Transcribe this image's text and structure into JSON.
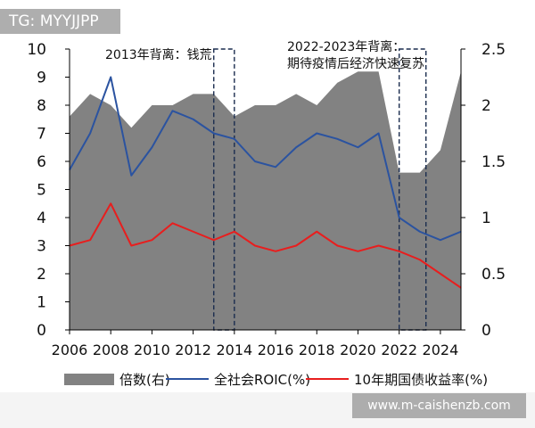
{
  "watermark_top": "TG: MYYJJPP",
  "watermark_bottom": "www.m-caishenzb.com",
  "colors": {
    "area": "#828282",
    "roic": "#2b53a0",
    "bond": "#e81e1e",
    "box": "#1a2c4e"
  },
  "chart_data": {
    "type": "line",
    "x": [
      2006,
      2007,
      2008,
      2009,
      2010,
      2011,
      2012,
      2013,
      2014,
      2015,
      2016,
      2017,
      2018,
      2019,
      2020,
      2021,
      2022,
      2023,
      2024,
      2025
    ],
    "x_ticks": [
      "2006",
      "2008",
      "2010",
      "2012",
      "2014",
      "2016",
      "2018",
      "2020",
      "2022",
      "2024"
    ],
    "y_left_ticks": [
      "0",
      "1",
      "2",
      "3",
      "4",
      "5",
      "6",
      "7",
      "8",
      "9",
      "10"
    ],
    "y_right_ticks": [
      "0",
      "0.5",
      "1",
      "1.5",
      "2",
      "2.5"
    ],
    "ylim_left": [
      0,
      10
    ],
    "ylim_right": [
      0,
      2.5
    ],
    "xlim": [
      2006,
      2025
    ],
    "series": [
      {
        "name": "倍数(右)",
        "type": "area",
        "axis": "right",
        "values": [
          1.9,
          2.1,
          2.0,
          1.8,
          2.0,
          2.0,
          2.1,
          2.1,
          1.9,
          2.0,
          2.0,
          2.1,
          2.0,
          2.2,
          2.3,
          2.3,
          1.4,
          1.4,
          1.6,
          2.3
        ]
      },
      {
        "name": "全社会ROIC(%)",
        "type": "line",
        "axis": "left",
        "values": [
          5.7,
          7.0,
          9.0,
          5.5,
          6.5,
          7.8,
          7.5,
          7.0,
          6.8,
          6.0,
          5.8,
          6.5,
          7.0,
          6.8,
          6.5,
          7.0,
          4.0,
          3.5,
          3.2,
          3.5
        ]
      },
      {
        "name": "10年期国债收益率(%)",
        "type": "line",
        "axis": "left",
        "values": [
          3.0,
          3.2,
          4.5,
          3.0,
          3.2,
          3.8,
          3.5,
          3.2,
          3.5,
          3.0,
          2.8,
          3.0,
          3.5,
          3.0,
          2.8,
          3.0,
          2.8,
          2.5,
          2.0,
          1.5
        ]
      }
    ],
    "annotations": [
      {
        "lines": [
          "2013年背离：钱荒"
        ],
        "x_range": [
          2013,
          2014
        ]
      },
      {
        "lines": [
          "2022-2023年背离：",
          "期待疫情后经济快速复苏"
        ],
        "x_range": [
          2022,
          2023.3
        ]
      }
    ],
    "grid": false,
    "legend_position": "bottom"
  }
}
